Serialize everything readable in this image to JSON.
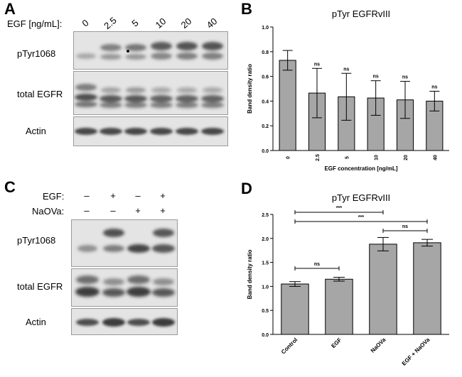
{
  "panelA": {
    "letter": "A",
    "egf_header": "EGF [ng/mL]:",
    "lanes": [
      "0",
      "2.5",
      "5",
      "10",
      "20",
      "40"
    ],
    "rows": [
      "pTyr1068",
      "total EGFR",
      "Actin"
    ]
  },
  "panelC": {
    "letter": "C",
    "row_headers": [
      "EGF:",
      "NaOVa:"
    ],
    "egf_signs": [
      "–",
      "+",
      "–",
      "+"
    ],
    "naova_signs": [
      "–",
      "–",
      "+",
      "+"
    ],
    "rows": [
      "pTyr1068",
      "total EGFR",
      "Actin"
    ]
  },
  "panelB": {
    "letter": "B"
  },
  "panelD": {
    "letter": "D"
  },
  "chart_data": [
    {
      "type": "bar",
      "title": "pTyr EGFRvIII",
      "xlabel": "EGF concentration [ng/mL]",
      "ylabel": "Band density ratio",
      "categories": [
        "0",
        "2.5",
        "5",
        "10",
        "20",
        "40"
      ],
      "values": [
        0.73,
        0.465,
        0.435,
        0.425,
        0.41,
        0.4
      ],
      "errors": [
        0.08,
        0.2,
        0.19,
        0.14,
        0.15,
        0.08
      ],
      "annotations": [
        "",
        "ns",
        "ns",
        "ns",
        "ns",
        "ns"
      ],
      "ylim": [
        0,
        1.0
      ],
      "yticks": [
        "0.0",
        "0.2",
        "0.4",
        "0.6",
        "0.8",
        "1.0"
      ],
      "bar_color": "#a6a6a6"
    },
    {
      "type": "bar",
      "title": "pTyr EGFRvIII",
      "xlabel": "",
      "ylabel": "Band density ratio",
      "categories": [
        "Control",
        "EGF",
        "NaOVa",
        "EGF + NaOVa"
      ],
      "values": [
        1.05,
        1.15,
        1.88,
        1.91
      ],
      "errors": [
        0.05,
        0.04,
        0.14,
        0.07
      ],
      "significance": [
        {
          "from": 0,
          "to": 1,
          "label": "ns"
        },
        {
          "from": 0,
          "to": 2,
          "label": "***"
        },
        {
          "from": 0,
          "to": 3,
          "label": "***"
        },
        {
          "from": 2,
          "to": 3,
          "label": "ns"
        }
      ],
      "ylim": [
        0,
        2.5
      ],
      "yticks": [
        "0.0",
        "0.5",
        "1.0",
        "1.5",
        "2.0",
        "2.5"
      ],
      "bar_color": "#a6a6a6"
    }
  ]
}
